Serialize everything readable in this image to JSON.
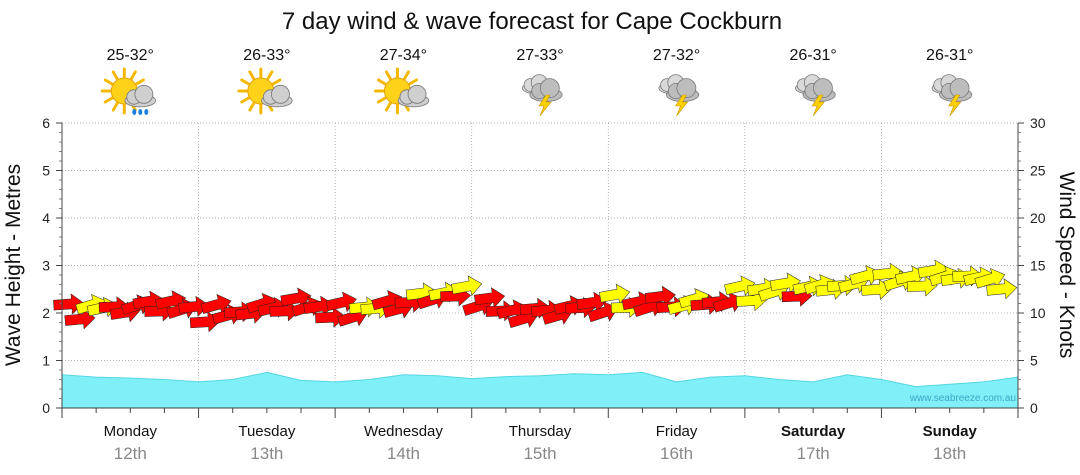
{
  "chart_data": {
    "type": "area",
    "title": "7 day wind & wave forecast for Cape Cockburn",
    "ylabel": "Wave Height - Metres",
    "y2label": "Wind Speed - Knots",
    "ylim": [
      0,
      6
    ],
    "y2lim": [
      0,
      30
    ],
    "yticks": [
      "0",
      "1",
      "2",
      "3",
      "4",
      "5",
      "6"
    ],
    "y2ticks": [
      "0",
      "5",
      "10",
      "15",
      "20",
      "25",
      "30"
    ],
    "watermark": "www.seabreeze.com.au",
    "colors": {
      "wave_fill": "#7ff0f8",
      "wave_stroke": "#55d6e4",
      "wind_high": "#ffff00",
      "wind_low": "#ff0000",
      "grid": "#9a9a9a"
    },
    "days": [
      {
        "name": "Monday",
        "date": "12th",
        "temp": "25-32°",
        "icon": "sun-cloud-rain-icon",
        "bold": false
      },
      {
        "name": "Tuesday",
        "date": "13th",
        "temp": "26-33°",
        "icon": "sun-cloud-icon",
        "bold": false
      },
      {
        "name": "Wednesday",
        "date": "14th",
        "temp": "27-34°",
        "icon": "sun-cloud-icon",
        "bold": false
      },
      {
        "name": "Thursday",
        "date": "15th",
        "temp": "27-33°",
        "icon": "storm-cloud-icon",
        "bold": false
      },
      {
        "name": "Friday",
        "date": "16th",
        "temp": "27-32°",
        "icon": "storm-cloud-icon",
        "bold": false
      },
      {
        "name": "Saturday",
        "date": "17th",
        "temp": "26-31°",
        "icon": "storm-cloud-icon",
        "bold": true
      },
      {
        "name": "Sunday",
        "date": "18th",
        "temp": "26-31°",
        "icon": "storm-cloud-icon",
        "bold": true
      }
    ],
    "wave_series": {
      "name": "Wave Height (m)",
      "x_hours": [
        0,
        6,
        12,
        18,
        24,
        30,
        36,
        42,
        48,
        54,
        60,
        66,
        72,
        78,
        84,
        90,
        96,
        102,
        108,
        114,
        120,
        126,
        132,
        138,
        144,
        150,
        156,
        162,
        168
      ],
      "values": [
        0.7,
        0.65,
        0.63,
        0.6,
        0.55,
        0.6,
        0.75,
        0.58,
        0.55,
        0.6,
        0.7,
        0.68,
        0.62,
        0.66,
        0.68,
        0.72,
        0.7,
        0.75,
        0.55,
        0.65,
        0.68,
        0.6,
        0.55,
        0.7,
        0.6,
        0.45,
        0.5,
        0.55,
        0.65
      ]
    },
    "wind_series": {
      "name": "Wind Speed (knots)",
      "x_hours": [
        0,
        6,
        12,
        18,
        24,
        30,
        36,
        42,
        48,
        54,
        60,
        66,
        72,
        78,
        84,
        90,
        96,
        102,
        108,
        114,
        120,
        126,
        132,
        138,
        144,
        150,
        156,
        162,
        168
      ],
      "values": [
        10,
        10.5,
        10.5,
        11,
        10,
        10,
        10.5,
        11,
        10,
        10.5,
        11,
        12,
        12,
        10,
        10,
        10.5,
        11,
        11,
        11,
        11,
        12,
        12.5,
        12.5,
        13,
        13.5,
        13.5,
        14,
        13.5,
        13
      ]
    }
  }
}
